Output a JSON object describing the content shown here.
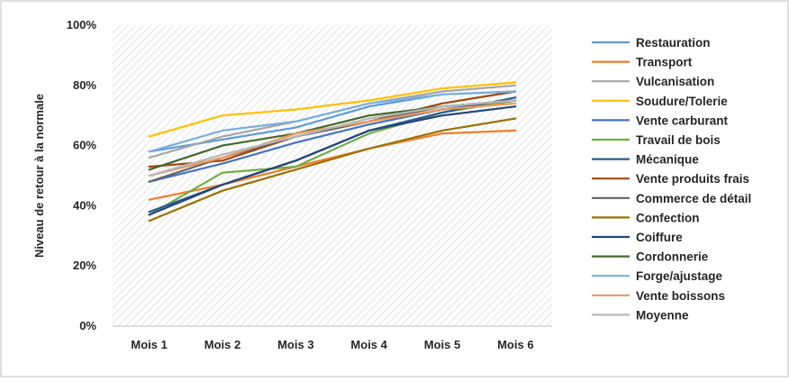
{
  "chart_data": {
    "type": "line",
    "title": "",
    "xlabel": "",
    "ylabel": "Niveau de retour à la normale",
    "ylim": [
      0,
      100
    ],
    "yticks": [
      "0%",
      "20%",
      "40%",
      "60%",
      "80%",
      "100%"
    ],
    "grid": false,
    "plot_background": "diagonal-hatch",
    "legend_position": "right",
    "categories": [
      "Mois 1",
      "Mois 2",
      "Mois 3",
      "Mois 4",
      "Mois 5",
      "Mois 6"
    ],
    "series": [
      {
        "name": "Restauration",
        "color": "#5B9BD5",
        "values": [
          58,
          62,
          66,
          73,
          77,
          78
        ]
      },
      {
        "name": "Transport",
        "color": "#ED7D31",
        "values": [
          42,
          47,
          53,
          59,
          64,
          65
        ]
      },
      {
        "name": "Vulcanisation",
        "color": "#A5A5A5",
        "values": [
          56,
          63,
          68,
          74,
          78,
          80
        ]
      },
      {
        "name": "Soudure/Tolerie",
        "color": "#FFC000",
        "values": [
          63,
          70,
          72,
          75,
          79,
          81
        ]
      },
      {
        "name": "Vente carburant",
        "color": "#4472C4",
        "values": [
          48,
          54,
          61,
          67,
          72,
          75
        ]
      },
      {
        "name": "Travail de bois",
        "color": "#70AD47",
        "values": [
          37,
          51,
          53,
          64,
          71,
          75
        ]
      },
      {
        "name": "Mécanique",
        "color": "#255E91",
        "values": [
          38,
          47,
          55,
          65,
          71,
          76
        ]
      },
      {
        "name": "Vente produits frais",
        "color": "#9E480E",
        "values": [
          53,
          55,
          63,
          68,
          74,
          78
        ]
      },
      {
        "name": "Commerce de détail",
        "color": "#636363",
        "values": [
          48,
          56,
          63,
          68,
          73,
          75
        ]
      },
      {
        "name": "Confection",
        "color": "#997300",
        "values": [
          35,
          45,
          52,
          59,
          65,
          69
        ]
      },
      {
        "name": "Coiffure",
        "color": "#264478",
        "values": [
          37,
          47,
          55,
          65,
          70,
          73
        ]
      },
      {
        "name": "Cordonnerie",
        "color": "#43682B",
        "values": [
          52,
          60,
          64,
          70,
          73,
          75
        ]
      },
      {
        "name": "Forge/ajustage",
        "color": "#7CAFDD",
        "values": [
          58,
          65,
          68,
          74,
          77,
          78
        ]
      },
      {
        "name": "Vente boissons",
        "color": "#F1975A",
        "values": [
          50,
          56,
          64,
          68,
          72,
          74
        ]
      },
      {
        "name": "Moyenne",
        "color": "#B7B7B7",
        "values": [
          50,
          57,
          63,
          69,
          73,
          75
        ]
      }
    ]
  }
}
